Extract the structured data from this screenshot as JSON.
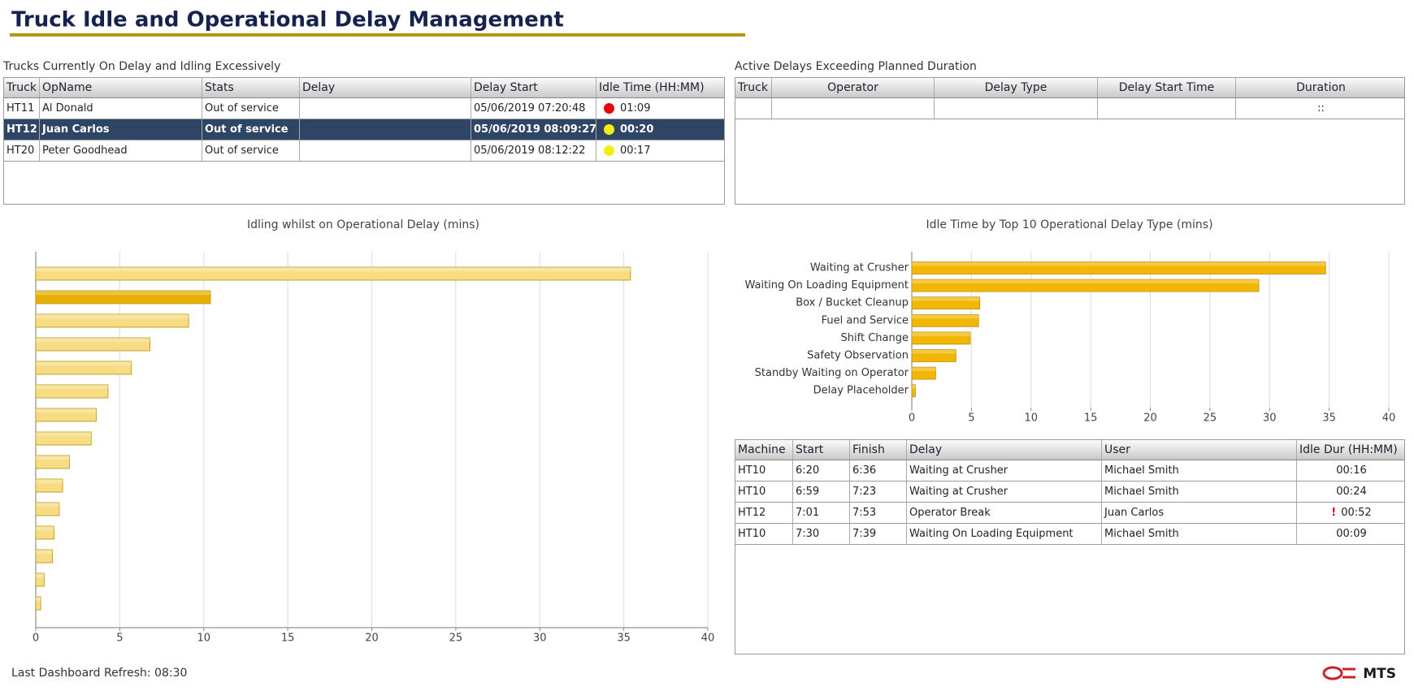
{
  "header": {
    "title": "Truck Idle and Operational Delay Management"
  },
  "trucks_table": {
    "title": "Trucks Currently On Delay and Idling Excessively",
    "columns": [
      "Truck",
      "OpName",
      "Stats",
      "Delay",
      "Delay Start",
      "Idle Time (HH:MM)"
    ],
    "rows": [
      [
        "HT11",
        "Al Donald",
        "Out of service",
        null,
        "05/06/2019 07:20:48",
        "01:09"
      ],
      [
        "HT12",
        "Juan Carlos",
        "Out of service",
        null,
        "05/06/2019 08:09:27",
        "00:20"
      ],
      [
        "HT20",
        "Peter Goodhead",
        "Out of service",
        null,
        "05/06/2019 08:12:22",
        "00:17"
      ]
    ],
    "indicators": [
      "#e8000b",
      "#f2ee10",
      "#f2ee10"
    ],
    "selected_row": 1
  },
  "active_delays_table": {
    "title": "Active Delays Exceeding Planned Duration",
    "columns": [
      "Truck",
      "Operator",
      "Delay Type",
      "Delay Start Time",
      "Duration"
    ],
    "rows": [
      [
        null,
        null,
        null,
        null,
        "::"
      ]
    ]
  },
  "chart_data": [
    {
      "type": "bar",
      "orientation": "horizontal",
      "title": "Idling whilst on Operational Delay (mins)",
      "categories": [
        null,
        null,
        null,
        null,
        null,
        null,
        null,
        null,
        null,
        null,
        null,
        null,
        null,
        null,
        null
      ],
      "values": [
        35.4,
        10.4,
        9.1,
        6.8,
        5.7,
        4.3,
        3.6,
        3.3,
        2.0,
        1.6,
        1.4,
        1.1,
        1.0,
        0.5,
        0.3
      ],
      "color": "#f7dc84",
      "highlight_index": 1,
      "highlight_color": "#e6b000",
      "xlim": [
        0,
        40
      ],
      "xticks": [
        0,
        5,
        10,
        15,
        20,
        25,
        30,
        35,
        40
      ],
      "grid": true
    },
    {
      "type": "bar",
      "orientation": "horizontal",
      "title": "Idle Time by Top 10 Operational Delay Type (mins)",
      "categories": [
        "Waiting at Crusher",
        "Waiting On Loading Equipment",
        "Box / Bucket Cleanup",
        "Fuel and Service",
        "Shift Change",
        "Safety Observation",
        "Standby Waiting on Operator",
        "Delay Placeholder"
      ],
      "values": [
        34.7,
        29.1,
        5.7,
        5.6,
        4.9,
        3.7,
        2.0,
        0.3
      ],
      "color": "#f2b705",
      "xlim": [
        0,
        40
      ],
      "xticks": [
        0,
        5,
        10,
        15,
        20,
        25,
        30,
        35,
        40
      ],
      "grid": true
    }
  ],
  "log_table": {
    "columns": [
      "Machine",
      "Start",
      "Finish",
      "Delay",
      "User",
      "Idle Dur (HH:MM)"
    ],
    "rows": [
      [
        "HT10",
        "6:20",
        "6:36",
        "Waiting at Crusher",
        "Michael Smith",
        "00:16"
      ],
      [
        "HT10",
        "6:59",
        "7:23",
        "Waiting at Crusher",
        "Michael Smith",
        "00:24"
      ],
      [
        "HT12",
        "7:01",
        "7:53",
        "Operator Break",
        "Juan Carlos",
        "00:52"
      ],
      [
        "HT10",
        "7:30",
        "7:39",
        "Waiting On Loading Equipment",
        "Michael Smith",
        "00:09"
      ]
    ],
    "alerts": [
      null,
      null,
      "!",
      null
    ]
  },
  "footer": {
    "refresh": "Last Dashboard Refresh: 08:30",
    "logo": "MTS"
  }
}
